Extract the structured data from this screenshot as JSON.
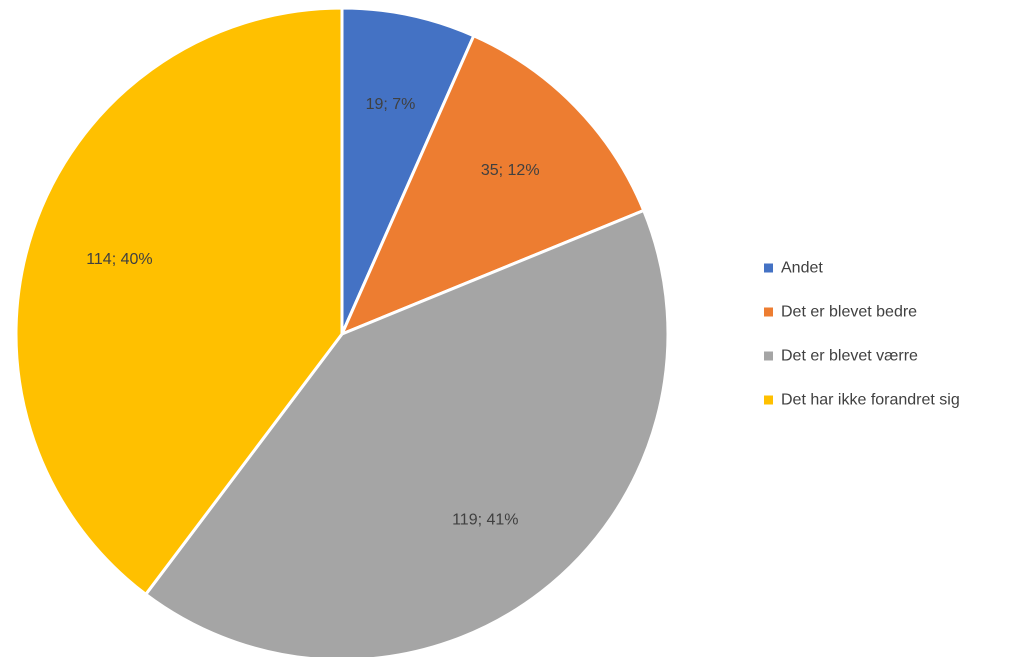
{
  "chart_data": {
    "type": "pie",
    "title": "",
    "legend_position": "right",
    "start_angle": "top, clockwise",
    "slices": [
      {
        "label": "Andet",
        "value": 19,
        "percent": "7%",
        "data_label": "19; 7%",
        "color": "#4472C4"
      },
      {
        "label": "Det er blevet bedre",
        "value": 35,
        "percent": "12%",
        "data_label": "35; 12%",
        "color": "#ED7D31"
      },
      {
        "label": "Det er blevet værre",
        "value": 119,
        "percent": "41%",
        "data_label": "119; 41%",
        "color": "#A5A5A5"
      },
      {
        "label": "Det har ikke forandret sig",
        "value": 114,
        "percent": "40%",
        "data_label": "114; 40%",
        "color": "#FFC000"
      }
    ]
  }
}
